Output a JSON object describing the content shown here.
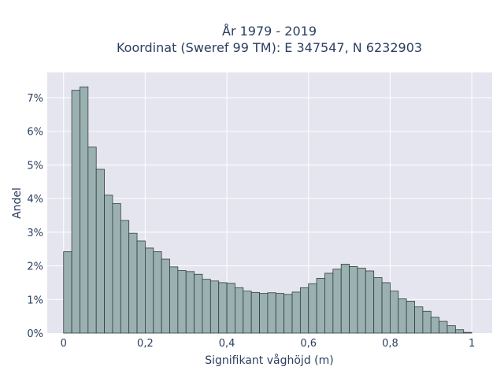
{
  "chart_data": {
    "type": "bar",
    "title_line1": "År 1979 - 2019",
    "title_line2": "Koordinat (Sweref 99 TM): E 347547, N 6232903",
    "xlabel": "Signifikant våghöjd (m)",
    "ylabel": "Andel",
    "xlim": [
      -0.04,
      1.05
    ],
    "ylim": [
      0,
      7.75
    ],
    "x_ticks": [
      {
        "value": 0,
        "label": "0"
      },
      {
        "value": 0.2,
        "label": "0,2"
      },
      {
        "value": 0.4,
        "label": "0,4"
      },
      {
        "value": 0.6,
        "label": "0,6"
      },
      {
        "value": 0.8,
        "label": "0,8"
      },
      {
        "value": 1.0,
        "label": "1"
      }
    ],
    "y_ticks": [
      {
        "value": 0,
        "label": "0%"
      },
      {
        "value": 1,
        "label": "1%"
      },
      {
        "value": 2,
        "label": "2%"
      },
      {
        "value": 3,
        "label": "3%"
      },
      {
        "value": 4,
        "label": "4%"
      },
      {
        "value": 5,
        "label": "5%"
      },
      {
        "value": 6,
        "label": "6%"
      },
      {
        "value": 7,
        "label": "7%"
      }
    ],
    "bin_start": 0.01,
    "bin_width": 0.02,
    "values": [
      2.42,
      7.22,
      7.32,
      5.53,
      4.87,
      4.1,
      3.85,
      3.35,
      2.97,
      2.74,
      2.53,
      2.42,
      2.2,
      1.97,
      1.86,
      1.83,
      1.75,
      1.6,
      1.55,
      1.5,
      1.48,
      1.35,
      1.25,
      1.21,
      1.18,
      1.2,
      1.18,
      1.15,
      1.22,
      1.35,
      1.47,
      1.63,
      1.78,
      1.9,
      2.05,
      1.98,
      1.93,
      1.85,
      1.65,
      1.5,
      1.25,
      1.02,
      0.95,
      0.78,
      0.65,
      0.47,
      0.35,
      0.22,
      0.1,
      0.02
    ],
    "grid": true,
    "bar_color": "#9bb0b0",
    "bar_edge_color": "#2f3f3f",
    "plot_bg": "#e5e5ef",
    "grid_color": "#ffffff",
    "text_color": "#2a3f5f"
  }
}
